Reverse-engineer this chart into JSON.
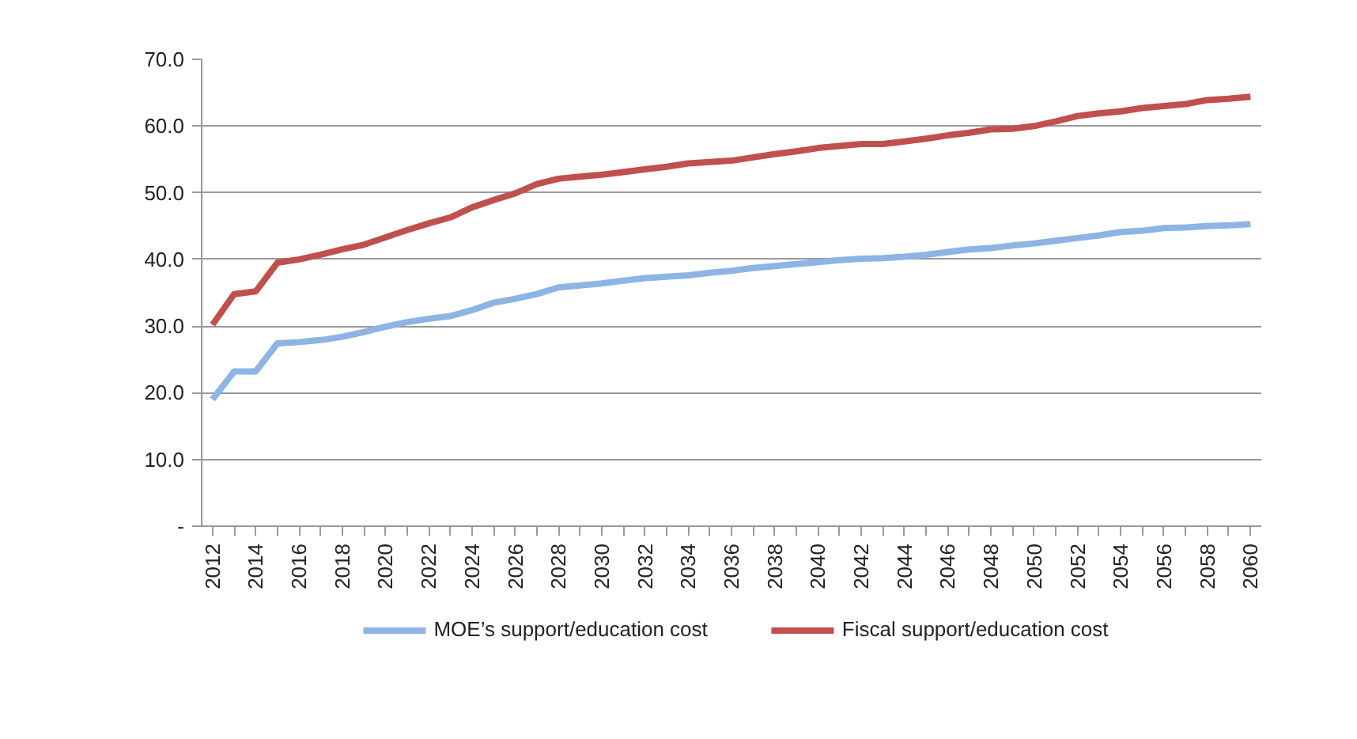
{
  "chart_data": {
    "type": "line",
    "x": [
      2012,
      2013,
      2014,
      2015,
      2016,
      2017,
      2018,
      2019,
      2020,
      2021,
      2022,
      2023,
      2024,
      2025,
      2026,
      2027,
      2028,
      2029,
      2030,
      2031,
      2032,
      2033,
      2034,
      2035,
      2036,
      2037,
      2038,
      2039,
      2040,
      2041,
      2042,
      2043,
      2044,
      2045,
      2046,
      2047,
      2048,
      2049,
      2050,
      2051,
      2052,
      2053,
      2054,
      2055,
      2056,
      2057,
      2058,
      2059,
      2060
    ],
    "series": [
      {
        "name": "MOE’s support/education cost",
        "color": "#8db4e3",
        "values": [
          19.0,
          23.2,
          23.2,
          27.4,
          27.6,
          27.9,
          28.4,
          29.1,
          29.9,
          30.6,
          31.1,
          31.5,
          32.4,
          33.5,
          34.1,
          34.8,
          35.8,
          36.1,
          36.4,
          36.8,
          37.2,
          37.4,
          37.6,
          38.0,
          38.3,
          38.7,
          39.0,
          39.3,
          39.6,
          39.9,
          40.1,
          40.2,
          40.4,
          40.7,
          41.1,
          41.5,
          41.7,
          42.1,
          42.4,
          42.8,
          43.2,
          43.6,
          44.1,
          44.3,
          44.7,
          44.8,
          45.0,
          45.1,
          45.3
        ]
      },
      {
        "name": "Fiscal support/education cost",
        "color": "#c0504d",
        "values": [
          30.2,
          34.8,
          35.2,
          39.5,
          40.0,
          40.7,
          41.5,
          42.2,
          43.3,
          44.4,
          45.4,
          46.3,
          47.8,
          48.9,
          49.9,
          51.3,
          52.1,
          52.4,
          52.7,
          53.1,
          53.5,
          53.9,
          54.4,
          54.6,
          54.8,
          55.3,
          55.8,
          56.2,
          56.7,
          57.0,
          57.3,
          57.3,
          57.7,
          58.1,
          58.6,
          59.0,
          59.5,
          59.6,
          60.0,
          60.7,
          61.5,
          61.9,
          62.2,
          62.7,
          63.0,
          63.3,
          63.9,
          64.1,
          64.4
        ]
      }
    ],
    "xlim": [
      2011.5,
      2060.5
    ],
    "xticks": [
      2012,
      {
        "value": 2013,
        "label": null
      },
      2014,
      {
        "value": 2015,
        "label": null
      },
      2016,
      {
        "value": 2017,
        "label": null
      },
      2018,
      {
        "value": 2019,
        "label": null
      },
      2020,
      {
        "value": 2021,
        "label": null
      },
      2022,
      {
        "value": 2023,
        "label": null
      },
      2024,
      {
        "value": 2025,
        "label": null
      },
      2026,
      {
        "value": 2027,
        "label": null
      },
      2028,
      {
        "value": 2029,
        "label": null
      },
      2030,
      {
        "value": 2031,
        "label": null
      },
      2032,
      {
        "value": 2033,
        "label": null
      },
      2034,
      {
        "value": 2035,
        "label": null
      },
      2036,
      {
        "value": 2037,
        "label": null
      },
      2038,
      {
        "value": 2039,
        "label": null
      },
      2040,
      {
        "value": 2041,
        "label": null
      },
      2042,
      {
        "value": 2043,
        "label": null
      },
      2044,
      {
        "value": 2045,
        "label": null
      },
      2046,
      {
        "value": 2047,
        "label": null
      },
      2048,
      {
        "value": 2049,
        "label": null
      },
      2050,
      {
        "value": 2051,
        "label": null
      },
      2052,
      {
        "value": 2053,
        "label": null
      },
      2054,
      {
        "value": 2055,
        "label": null
      },
      2056,
      {
        "value": 2057,
        "label": null
      },
      2058,
      {
        "value": 2059,
        "label": null
      },
      2060
    ],
    "ylim": [
      0,
      70
    ],
    "yticks": [
      {
        "value": 0,
        "label": "-"
      },
      {
        "value": 10,
        "label": "10.0"
      },
      {
        "value": 20,
        "label": "20.0"
      },
      {
        "value": 30,
        "label": "30.0"
      },
      {
        "value": 40,
        "label": "40.0"
      },
      {
        "value": 50,
        "label": "50.0"
      },
      {
        "value": 60,
        "label": "60.0"
      },
      {
        "value": 70,
        "label": "70.0"
      }
    ],
    "grid": "y",
    "legend": "bottom",
    "marker": "none",
    "line_style": "solid"
  }
}
